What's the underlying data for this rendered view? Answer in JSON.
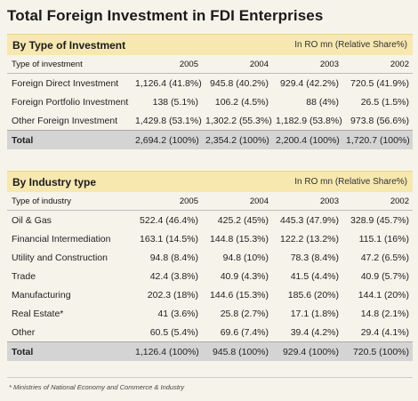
{
  "title": "Total Foreign Investment in FDI Enterprises",
  "section1": {
    "title": "By Type of Investment",
    "unit": "In RO mn (Relative Share%)",
    "headers": [
      "Type of investment",
      "2005",
      "2004",
      "2003",
      "2002"
    ],
    "rows": [
      [
        "Foreign Direct Investment",
        "1,126.4 (41.8%)",
        "945.8 (40.2%)",
        "929.4 (42.2%)",
        "720.5 (41.9%)"
      ],
      [
        "Foreign Portfolio Investment",
        "138 (5.1%)",
        "106.2 (4.5%)",
        "88 (4%)",
        "26.5 (1.5%)"
      ],
      [
        "Other Foreign Investment",
        "1,429.8 (53.1%)",
        "1,302.2 (55.3%)",
        "1,182.9 (53.8%)",
        "973.8 (56.6%)"
      ]
    ],
    "total": [
      "Total",
      "2,694.2 (100%)",
      "2,354.2 (100%)",
      "2,200.4 (100%)",
      "1,720.7 (100%)"
    ]
  },
  "section2": {
    "title": "By Industry type",
    "unit": "In RO mn (Relative Share%)",
    "headers": [
      "Type of industry",
      "2005",
      "2004",
      "2003",
      "2002"
    ],
    "rows": [
      [
        "Oil & Gas",
        "522.4 (46.4%)",
        "425.2 (45%)",
        "445.3 (47.9%)",
        "328.9 (45.7%)"
      ],
      [
        "Financial Intermediation",
        "163.1 (14.5%)",
        "144.8 (15.3%)",
        "122.2 (13.2%)",
        "115.1 (16%)"
      ],
      [
        "Utility and Construction",
        "94.8 (8.4%)",
        "94.8 (10%)",
        "78.3 (8.4%)",
        "47.2 (6.5%)"
      ],
      [
        "Trade",
        "42.4 (3.8%)",
        "40.9 (4.3%)",
        "41.5 (4.4%)",
        "40.9 (5.7%)"
      ],
      [
        "Manufacturing",
        "202.3 (18%)",
        "144.6 (15.3%)",
        "185.6 (20%)",
        "144.1 (20%)"
      ],
      [
        "Real Estate*",
        "41 (3.6%)",
        "25.8 (2.7%)",
        "17.1 (1.8%)",
        "14.8 (2.1%)"
      ],
      [
        "Other",
        "60.5 (5.4%)",
        "69.6 (7.4%)",
        "39.4 (4.2%)",
        "29.4 (4.1%)"
      ]
    ],
    "total": [
      "Total",
      "1,126.4 (100%)",
      "945.8 (100%)",
      "929.4 (100%)",
      "720.5 (100%)"
    ]
  },
  "footnote": "* Ministries of National Economy and Commerce & Industry"
}
